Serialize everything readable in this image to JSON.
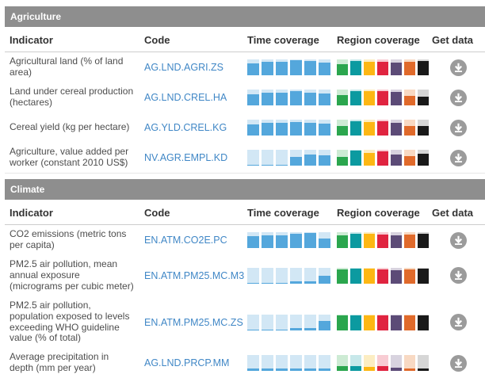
{
  "column_headers": {
    "indicator": "Indicator",
    "code": "Code",
    "time": "Time coverage",
    "region": "Region coverage",
    "get_data": "Get data"
  },
  "colors": {
    "section_bar_bg": "#8e8e8e",
    "section_bar_text": "#ffffff",
    "column_header_text": "#333333",
    "indicator_text": "#4d4d4d",
    "code_link": "#4087c6",
    "header_rule": "#cccccc",
    "download_button": "#9b9b9b",
    "time_fill": "#54a7dc",
    "time_tint": "#d2e7f5",
    "region_fills": [
      "#2ba64e",
      "#0c9aa0",
      "#fdb714",
      "#e02440",
      "#5c4b77",
      "#e06a2b",
      "#191919"
    ],
    "region_tints": [
      "#cdebd4",
      "#c7e8ea",
      "#fcedc2",
      "#f8ccd3",
      "#d8d3df",
      "#f8d9c3",
      "#d6d6d6"
    ]
  },
  "icons": {
    "get_data_icon": "circle-download-arrow"
  },
  "sections": [
    {
      "title": "Agriculture",
      "rows": [
        {
          "indicator": "Agricultural land (% of land area)",
          "code": "AG.LND.AGRI.ZS",
          "time_coverage": [
            0.75,
            0.85,
            0.85,
            0.95,
            0.88,
            0.78
          ],
          "region_coverage": [
            0.7,
            0.9,
            0.85,
            0.85,
            0.78,
            0.85,
            0.9
          ]
        },
        {
          "indicator": "Land under cereal production (hectares)",
          "code": "AG.LND.CREL.HA",
          "time_coverage": [
            0.72,
            0.8,
            0.78,
            0.88,
            0.8,
            0.76
          ],
          "region_coverage": [
            0.65,
            0.92,
            0.88,
            0.9,
            0.85,
            0.62,
            0.55
          ]
        },
        {
          "indicator": "Cereal yield (kg per hectare)",
          "code": "AG.YLD.CREL.KG",
          "time_coverage": [
            0.72,
            0.8,
            0.78,
            0.85,
            0.8,
            0.75
          ],
          "region_coverage": [
            0.6,
            0.9,
            0.85,
            0.9,
            0.8,
            0.62,
            0.6
          ]
        },
        {
          "indicator": "Agriculture, value added per worker (constant 2010 US$)",
          "code": "NV.AGR.EMPL.KD",
          "time_coverage": [
            0.03,
            0.03,
            0.03,
            0.55,
            0.7,
            0.65
          ],
          "region_coverage": [
            0.55,
            0.95,
            0.8,
            0.9,
            0.72,
            0.6,
            0.75
          ]
        }
      ]
    },
    {
      "title": "Climate",
      "rows": [
        {
          "indicator": "CO2 emissions (metric tons per capita)",
          "code": "EN.ATM.CO2E.PC",
          "time_coverage": [
            0.75,
            0.82,
            0.82,
            0.88,
            0.95,
            0.62
          ],
          "region_coverage": [
            0.8,
            0.9,
            0.9,
            0.85,
            0.8,
            0.85,
            0.9
          ]
        },
        {
          "indicator": "PM2.5 air pollution, mean annual exposure (micrograms per cubic meter)",
          "code": "EN.ATM.PM25.MC.M3",
          "time_coverage": [
            0.03,
            0.03,
            0.03,
            0.15,
            0.15,
            0.5
          ],
          "region_coverage": [
            0.9,
            0.95,
            0.95,
            0.9,
            0.85,
            0.9,
            0.95
          ]
        },
        {
          "indicator": "PM2.5 air pollution, population exposed to levels exceeding WHO guideline value (% of total)",
          "code": "EN.ATM.PM25.MC.ZS",
          "time_coverage": [
            0.03,
            0.03,
            0.03,
            0.12,
            0.12,
            0.6
          ],
          "region_coverage": [
            0.95,
            0.95,
            0.95,
            0.95,
            0.95,
            0.95,
            0.95
          ]
        },
        {
          "indicator": "Average precipitation in depth (mm per year)",
          "code": "AG.LND.PRCP.MM",
          "time_coverage": [
            0.15,
            0.15,
            0.15,
            0.15,
            0.15,
            0.18
          ],
          "region_coverage": [
            0.3,
            0.32,
            0.25,
            0.3,
            0.2,
            0.15,
            0.15
          ]
        }
      ]
    }
  ]
}
